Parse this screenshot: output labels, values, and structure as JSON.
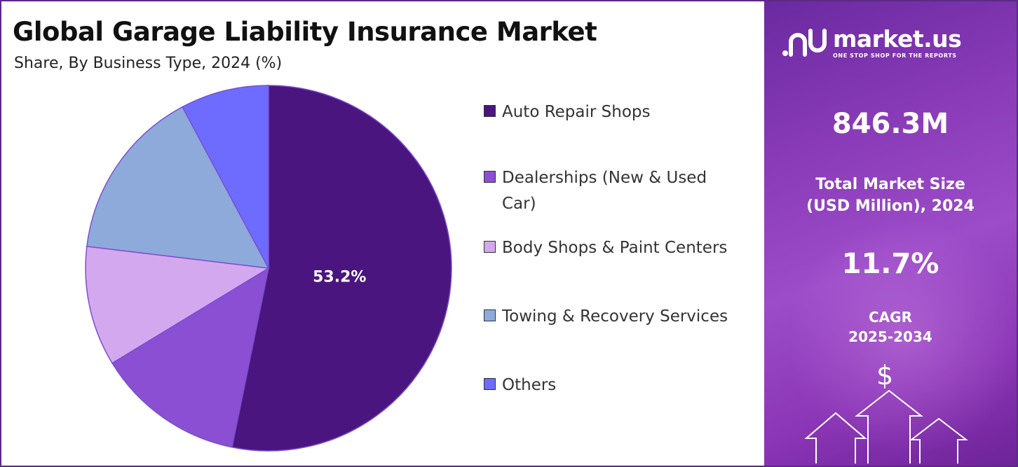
{
  "header": {
    "title": "Global Garage Liability Insurance Market",
    "subtitle": "Share, By Business Type, 2024 (%)"
  },
  "chart_data": {
    "type": "pie",
    "title": "Global Garage Liability Insurance Market",
    "subtitle": "Share, By Business Type, 2024 (%)",
    "categories": [
      "Auto Repair Shops",
      "Dealerships (New & Used Car)",
      "Body Shops & Paint Centers",
      "Towing & Recovery Services",
      "Others"
    ],
    "values": [
      53.2,
      13.1,
      10.6,
      15.3,
      7.8
    ],
    "colors": [
      "#4b1580",
      "#8a4fd3",
      "#d4a8ee",
      "#8eaadb",
      "#6e6cff"
    ],
    "data_labels": [
      "53.2%",
      "",
      "",
      "",
      ""
    ],
    "legend_placement": "right"
  },
  "legend": {
    "items": [
      {
        "label": "Auto Repair Shops",
        "color": "#4b1580"
      },
      {
        "label": "Dealerships (New & Used Car)",
        "color": "#8a4fd3"
      },
      {
        "label": "Body Shops & Paint Centers",
        "color": "#d4a8ee"
      },
      {
        "label": "Towing & Recovery Services",
        "color": "#8eaadb"
      },
      {
        "label": "Others",
        "color": "#6e6cff"
      }
    ]
  },
  "sidebar": {
    "brand": "market.us",
    "tagline": "ONE STOP SHOP FOR THE REPORTS",
    "market_size_value": "846.3M",
    "market_size_label_line1": "Total Market Size",
    "market_size_label_line2": "(USD Million), 2024",
    "cagr_value": "11.7%",
    "cagr_label_line1": "CAGR",
    "cagr_label_line2": "2025-2034",
    "currency_symbol": "$"
  }
}
